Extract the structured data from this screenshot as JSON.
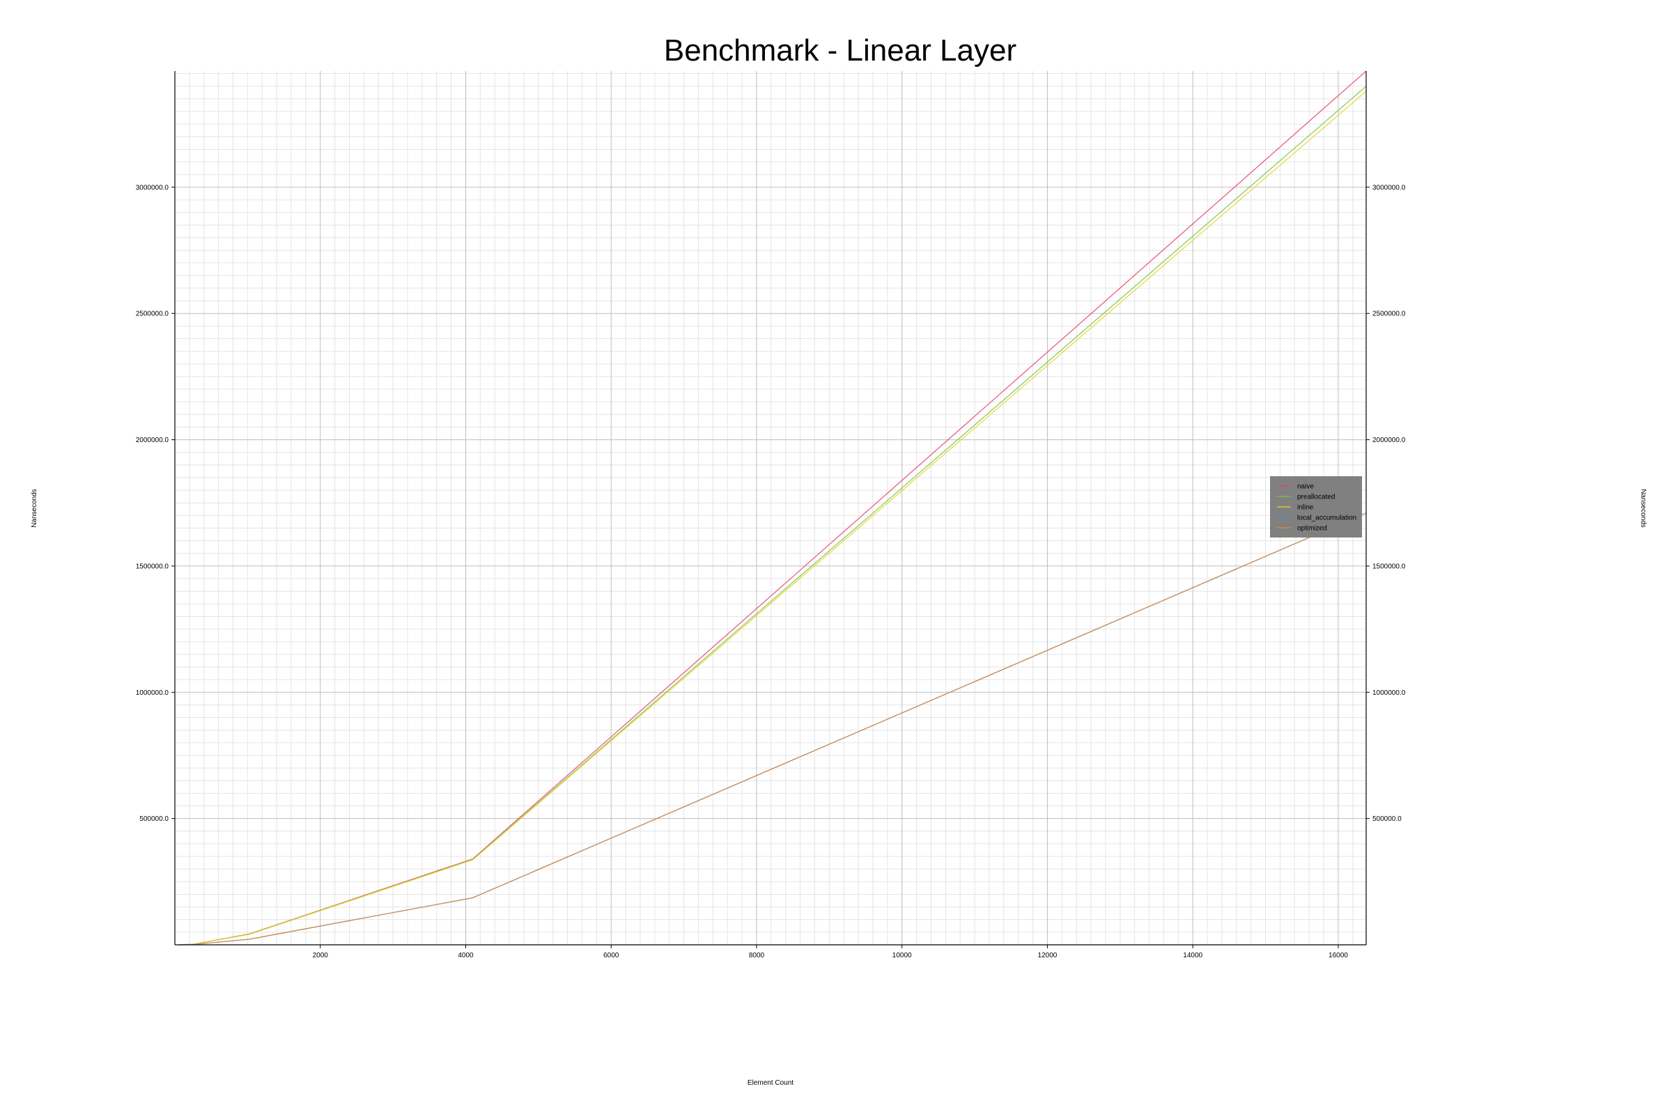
{
  "chart_data": {
    "type": "line",
    "title": "Benchmark - Linear Layer",
    "xlabel": "Element Count",
    "ylabel": "Nanseconds",
    "ylabel_right": "Nanseconds",
    "xlim": [
      0,
      16384
    ],
    "ylim": [
      0,
      3460000
    ],
    "x_ticks": [
      2000,
      4000,
      6000,
      8000,
      10000,
      12000,
      14000,
      16000
    ],
    "y_ticks": [
      500000,
      1000000,
      1500000,
      2000000,
      2500000,
      3000000
    ],
    "y_tick_labels": [
      "500000.0",
      "1000000.0",
      "1500000.0",
      "2000000.0",
      "2500000.0",
      "3000000.0"
    ],
    "grid": true,
    "legend_position": "center-right",
    "x": [
      64,
      256,
      1024,
      4096,
      16384
    ],
    "series": [
      {
        "name": "naive",
        "color": "#e8406e",
        "values": [
          150,
          2600,
          43000,
          340000,
          3460000
        ]
      },
      {
        "name": "preallocated",
        "color": "#7cc242",
        "values": [
          140,
          2500,
          42000,
          338000,
          3400000
        ]
      },
      {
        "name": "inline",
        "color": "#e6d424",
        "values": [
          140,
          2500,
          41500,
          336000,
          3380000
        ]
      },
      {
        "name": "local_accumulation",
        "color": "#4a8fd6",
        "values": [
          80,
          1300,
          22000,
          186000,
          1710000
        ]
      },
      {
        "name": "optimized",
        "color": "#e08a3c",
        "values": [
          80,
          1300,
          22000,
          186000,
          1710000
        ]
      }
    ]
  },
  "legend": {
    "background": "#808080"
  }
}
